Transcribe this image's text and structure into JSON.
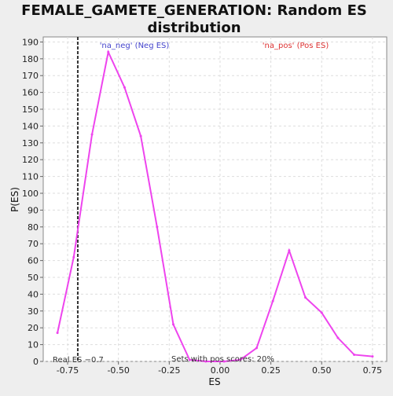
{
  "chart_data": {
    "type": "line",
    "title_line1": "FEMALE_GAMETE_GENERATION: Random ES",
    "title_line2": "distribution",
    "xlabel": "ES",
    "ylabel": "P(ES)",
    "xlim": [
      -0.87,
      0.82
    ],
    "ylim": [
      0,
      193
    ],
    "x_ticks": [
      -0.75,
      -0.5,
      -0.25,
      0.0,
      0.25,
      0.5,
      0.75
    ],
    "x_tick_labels": [
      "-0.75",
      "-0.50",
      "-0.25",
      "0.00",
      "0.25",
      "0.50",
      "0.75"
    ],
    "y_ticks": [
      0,
      10,
      20,
      30,
      40,
      50,
      60,
      70,
      80,
      90,
      100,
      110,
      120,
      130,
      140,
      150,
      160,
      170,
      180,
      190
    ],
    "y_tick_labels": [
      "0",
      "10",
      "20",
      "30",
      "40",
      "50",
      "60",
      "70",
      "80",
      "90",
      "100",
      "110",
      "120",
      "130",
      "140",
      "150",
      "160",
      "170",
      "180",
      "190"
    ],
    "grid": true,
    "series": [
      {
        "color": "#ee44ee",
        "x": [
          -0.8,
          -0.72,
          -0.63,
          -0.55,
          -0.47,
          -0.39,
          -0.31,
          -0.23,
          -0.15,
          -0.07,
          0.02,
          0.1,
          0.18,
          0.26,
          0.34,
          0.42,
          0.5,
          0.58,
          0.66,
          0.75
        ],
        "y": [
          17,
          62,
          135,
          184,
          163,
          134,
          80,
          22,
          1,
          0,
          0,
          1,
          8,
          36,
          66,
          38,
          29,
          14,
          4,
          3
        ]
      }
    ],
    "real_es": {
      "value": -0.7,
      "label": "Real ES −0.7",
      "color": "#333333"
    },
    "annotations": {
      "neg_label": "'na_neg' (Neg ES)",
      "neg_color": "#4444cc",
      "pos_label": "'na_pos' (Pos ES)",
      "pos_color": "#dd3333",
      "pos_scores_label": "Sets with pos scores: 20%"
    }
  }
}
